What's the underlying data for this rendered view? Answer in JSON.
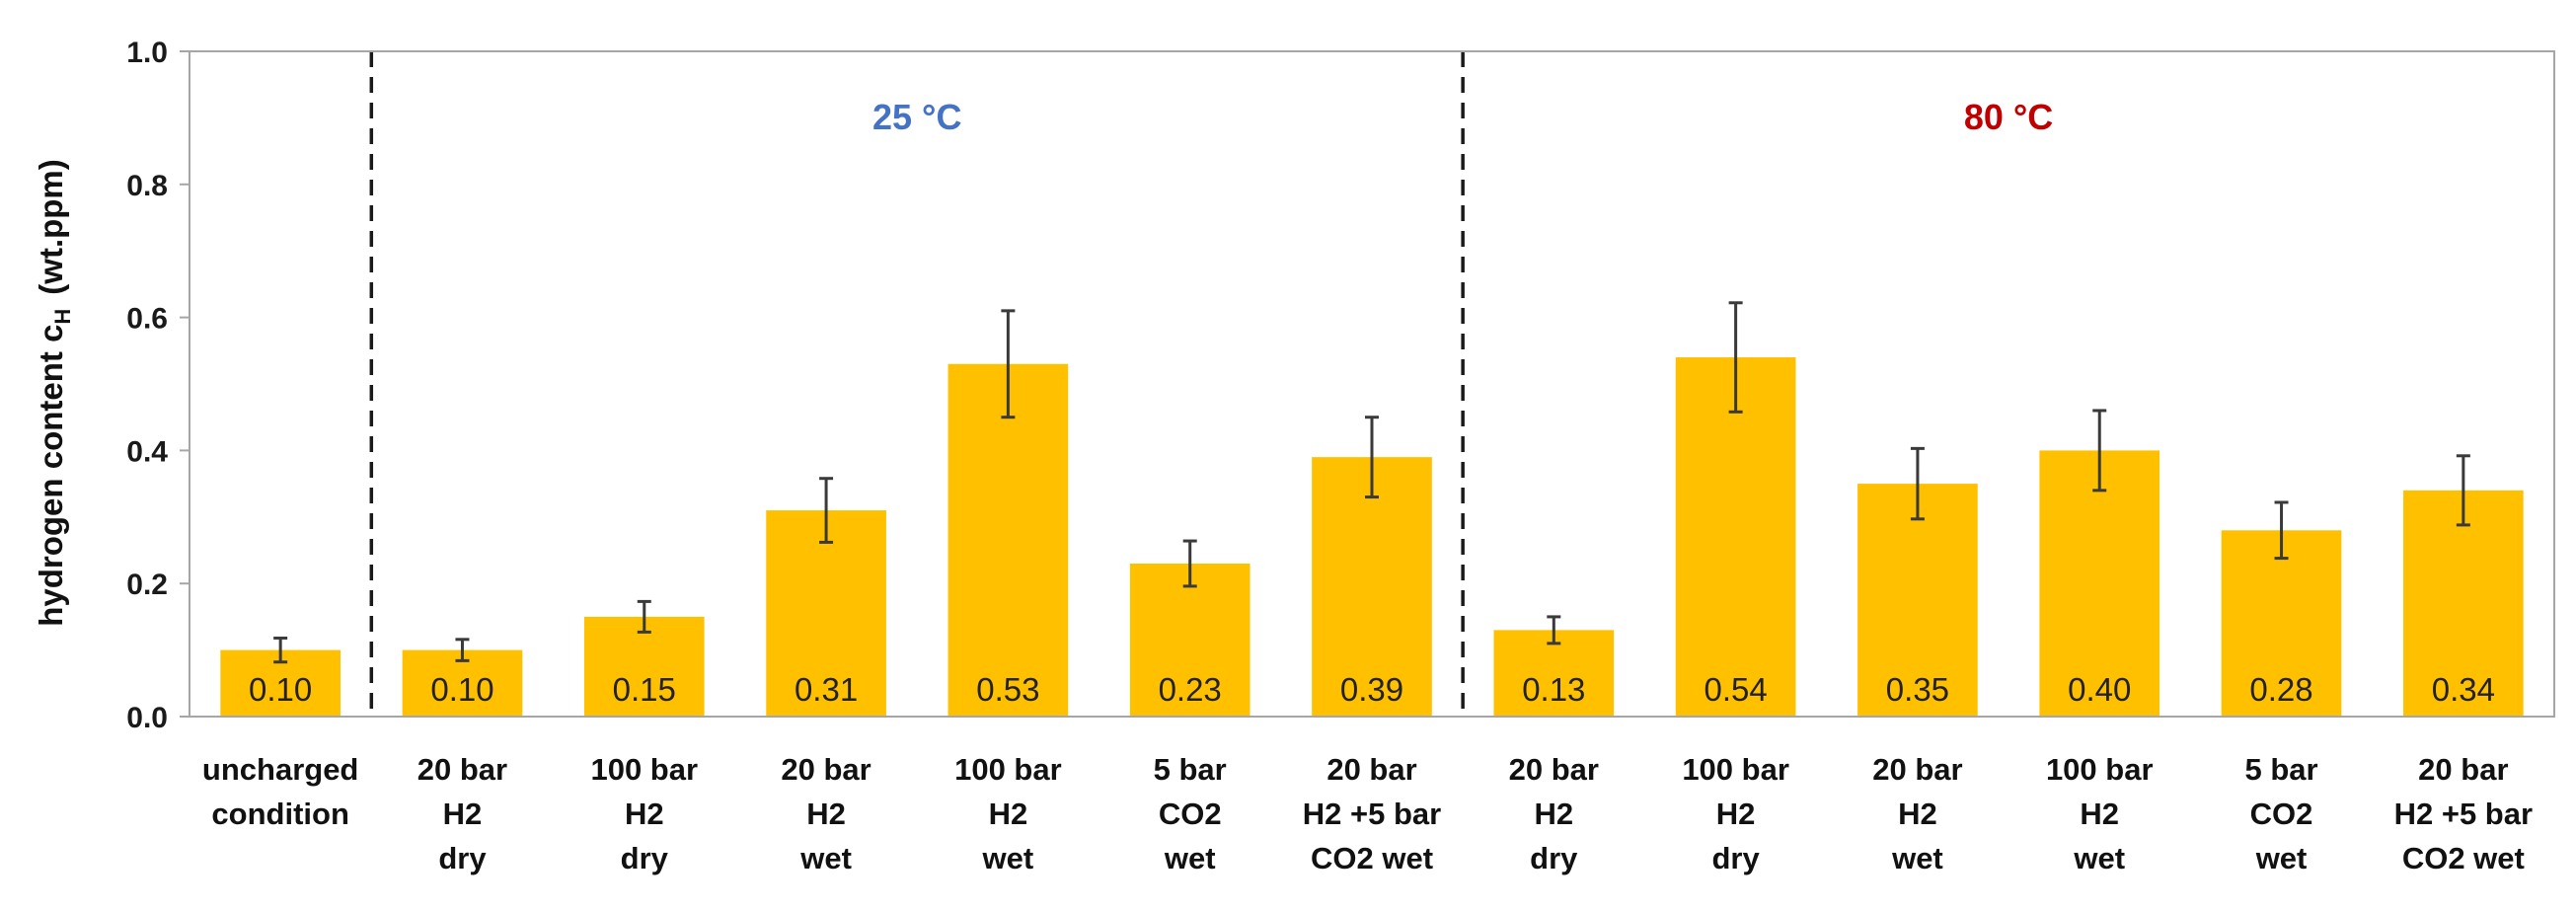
{
  "chart_data": {
    "type": "bar",
    "ylabel_main": "hydrogen content c",
    "ylabel_sub": "H",
    "ylabel_unit": "(wt.ppm)",
    "ylim": [
      0,
      1.0
    ],
    "yticks": [
      "0.0",
      "0.2",
      "0.4",
      "0.6",
      "0.8",
      "1.0"
    ],
    "ytick_values": [
      0,
      0.2,
      0.4,
      0.6,
      0.8,
      1.0
    ],
    "bar_color": "#FFC000",
    "groups": [
      {
        "label": "",
        "color": "#000000"
      },
      {
        "label": "25 °C",
        "color": "#4472C4"
      },
      {
        "label": "80 °C",
        "color": "#C00000"
      }
    ],
    "categories": [
      {
        "lines": [
          "uncharged",
          "condition"
        ],
        "group": 0,
        "value": 0.1,
        "value_label": "0.10",
        "error": 0.018
      },
      {
        "lines": [
          "20 bar",
          "H2",
          "dry"
        ],
        "group": 1,
        "value": 0.1,
        "value_label": "0.10",
        "error": 0.016
      },
      {
        "lines": [
          "100 bar",
          "H2",
          "dry"
        ],
        "group": 1,
        "value": 0.15,
        "value_label": "0.15",
        "error": 0.023
      },
      {
        "lines": [
          "20 bar",
          "H2",
          "wet"
        ],
        "group": 1,
        "value": 0.31,
        "value_label": "0.31",
        "error": 0.048
      },
      {
        "lines": [
          "100 bar",
          "H2",
          "wet"
        ],
        "group": 1,
        "value": 0.53,
        "value_label": "0.53",
        "error": 0.08
      },
      {
        "lines": [
          "5 bar",
          "CO2",
          "wet"
        ],
        "group": 1,
        "value": 0.23,
        "value_label": "0.23",
        "error": 0.034
      },
      {
        "lines": [
          "20 bar",
          "H2 +5 bar",
          "CO2 wet"
        ],
        "group": 1,
        "value": 0.39,
        "value_label": "0.39",
        "error": 0.06
      },
      {
        "lines": [
          "20 bar",
          "H2",
          "dry"
        ],
        "group": 2,
        "value": 0.13,
        "value_label": "0.13",
        "error": 0.02
      },
      {
        "lines": [
          "100 bar",
          "H2",
          "dry"
        ],
        "group": 2,
        "value": 0.54,
        "value_label": "0.54",
        "error": 0.082
      },
      {
        "lines": [
          "20 bar",
          "H2",
          "wet"
        ],
        "group": 2,
        "value": 0.35,
        "value_label": "0.35",
        "error": 0.053
      },
      {
        "lines": [
          "100 bar",
          "H2",
          "wet"
        ],
        "group": 2,
        "value": 0.4,
        "value_label": "0.40",
        "error": 0.06
      },
      {
        "lines": [
          "5 bar",
          "CO2",
          "wet"
        ],
        "group": 2,
        "value": 0.28,
        "value_label": "0.28",
        "error": 0.042
      },
      {
        "lines": [
          "20 bar",
          "H2 +5 bar",
          "CO2 wet"
        ],
        "group": 2,
        "value": 0.34,
        "value_label": "0.34",
        "error": 0.052
      }
    ]
  }
}
